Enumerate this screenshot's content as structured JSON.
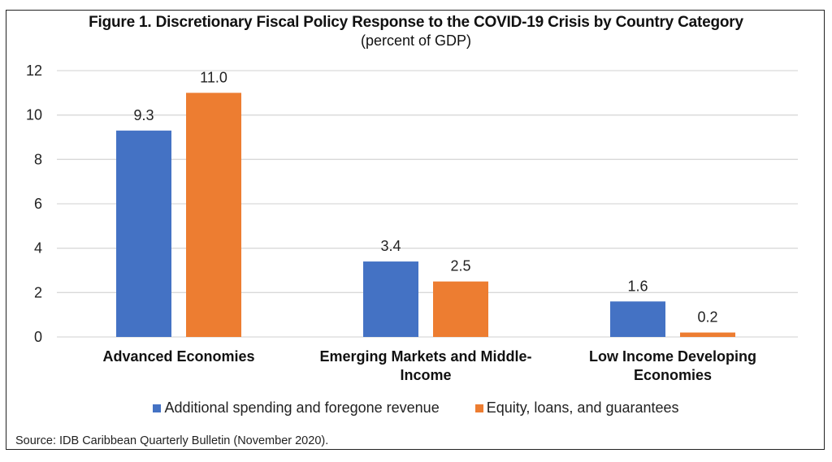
{
  "chart_data": {
    "type": "bar",
    "title": "Figure 1. Discretionary Fiscal Policy Response to the COVID-19 Crisis by Country Category",
    "subtitle": "(percent of GDP)",
    "categories": [
      [
        "Advanced Economies"
      ],
      [
        "Emerging Markets and Middle-",
        "Income"
      ],
      [
        "Low Income Developing",
        "Economies"
      ]
    ],
    "series": [
      {
        "name": "Additional spending and foregone revenue",
        "color": "#4472C4",
        "values": [
          9.3,
          3.4,
          1.6
        ],
        "labels": [
          "9.3",
          "3.4",
          "1.6"
        ]
      },
      {
        "name": "Equity, loans, and guarantees",
        "color": "#ED7D31",
        "values": [
          11.0,
          2.5,
          0.2
        ],
        "labels": [
          "11.0",
          "2.5",
          "0.2"
        ]
      }
    ],
    "xlabel": "",
    "ylabel": "",
    "ylim": [
      0,
      12
    ],
    "yticks": [
      0,
      2,
      4,
      6,
      8,
      10,
      12
    ],
    "grid": true,
    "legend_position": "bottom"
  },
  "source": "Source: IDB Caribbean Quarterly Bulletin (November 2020)."
}
